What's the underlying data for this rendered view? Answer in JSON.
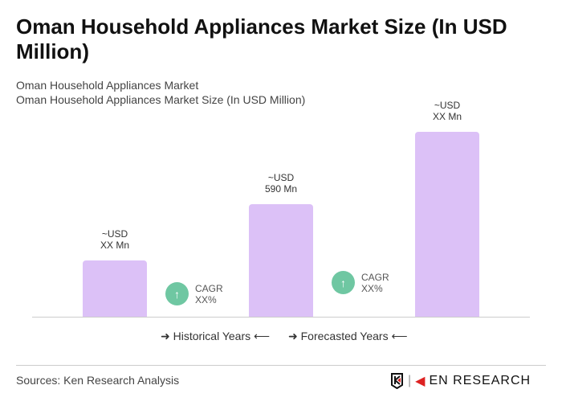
{
  "title": "Oman Household Appliances Market Size (In USD Million)",
  "subtitle1": "Oman Household Appliances Market",
  "subtitle2": "Oman Household Appliances Market Size (In USD Million)",
  "chart_data": {
    "type": "bar",
    "title": "Oman Household Appliances Market Size (In USD Million)",
    "categories": [
      "",
      "",
      ""
    ],
    "values": [
      295,
      590,
      970
    ],
    "data_labels": [
      [
        "~USD",
        "XX Mn"
      ],
      [
        "~USD",
        "590 Mn"
      ],
      [
        "~USD",
        "XX Mn"
      ]
    ],
    "bar_color": "#dcc1f7",
    "cagr": [
      {
        "label": "CAGR",
        "value": "XX%"
      },
      {
        "label": "CAGR",
        "value": "XX%"
      }
    ],
    "legend": [
      "Historical Years",
      "Forecasted Years"
    ],
    "grid": false
  },
  "source": "Sources: Ken Research Analysis",
  "logo_text": "KEN RESEARCH"
}
